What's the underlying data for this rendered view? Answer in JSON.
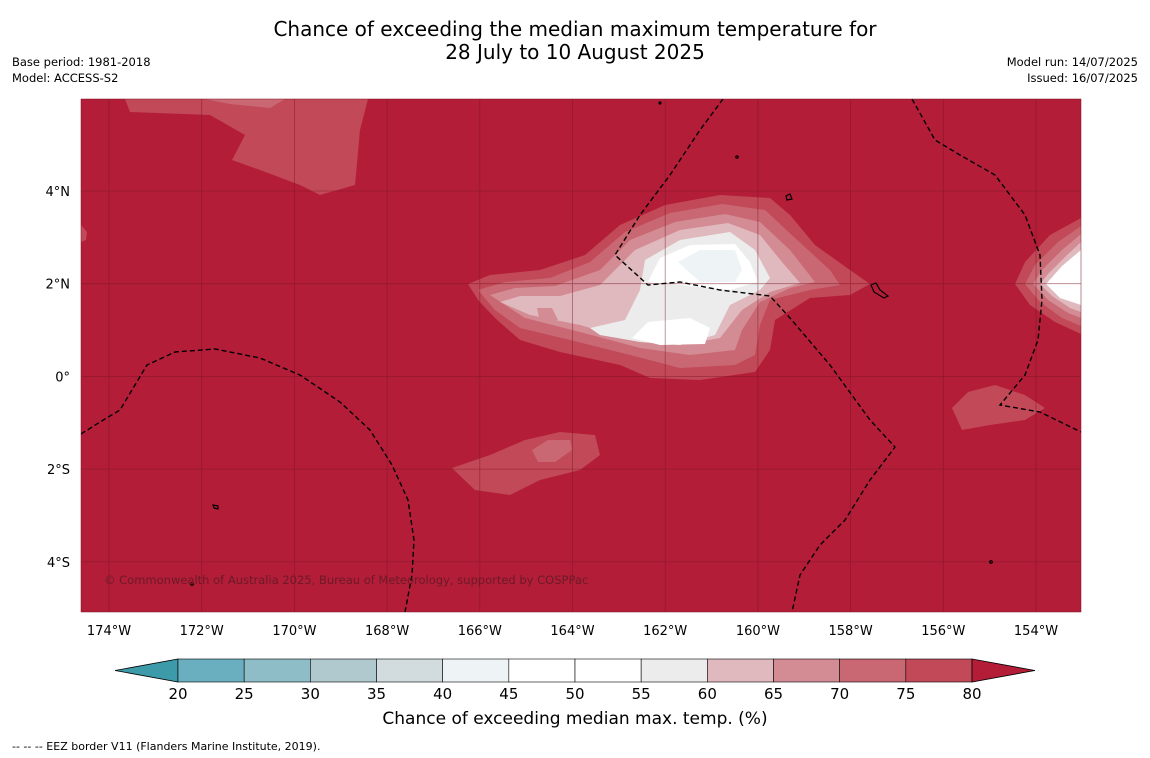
{
  "title": {
    "line1": "Chance of exceeding the median maximum temperature for",
    "line2": "28 July to 10 August 2025"
  },
  "meta": {
    "base_period": "Base period: 1981-2018",
    "model": "Model: ACCESS-S2",
    "model_run": "Model run: 14/07/2025",
    "issued": "Issued: 16/07/2025"
  },
  "map": {
    "lon_labels": [
      "174°W",
      "172°W",
      "170°W",
      "168°W",
      "166°W",
      "164°W",
      "162°W",
      "160°W",
      "158°W",
      "156°W",
      "154°W"
    ],
    "lat_labels": [
      "4°N",
      "2°N",
      "0°",
      "2°S",
      "4°S"
    ],
    "copyright": "© Commonwealth of Australia 2025, Bureau of Meteorology, supported by COSPPac",
    "background_color": "#b31d38"
  },
  "colorbar": {
    "ticks": [
      "20",
      "25",
      "30",
      "35",
      "40",
      "45",
      "50",
      "55",
      "60",
      "65",
      "70",
      "75",
      "80"
    ],
    "colors": [
      "#3d9aa8",
      "#6aafbf",
      "#8ebdc8",
      "#b0c9cf",
      "#d2dcdf",
      "#eef4f5",
      "#ffffff",
      "#ffffff",
      "#ececec",
      "#e0b9be",
      "#d38b94",
      "#c96872",
      "#c24957",
      "#b31d38"
    ],
    "label": "Chance of exceeding median max. temp. (%)"
  },
  "footnote": "--  --  -- EEZ border V11 (Flanders Marine Institute, 2019)."
}
